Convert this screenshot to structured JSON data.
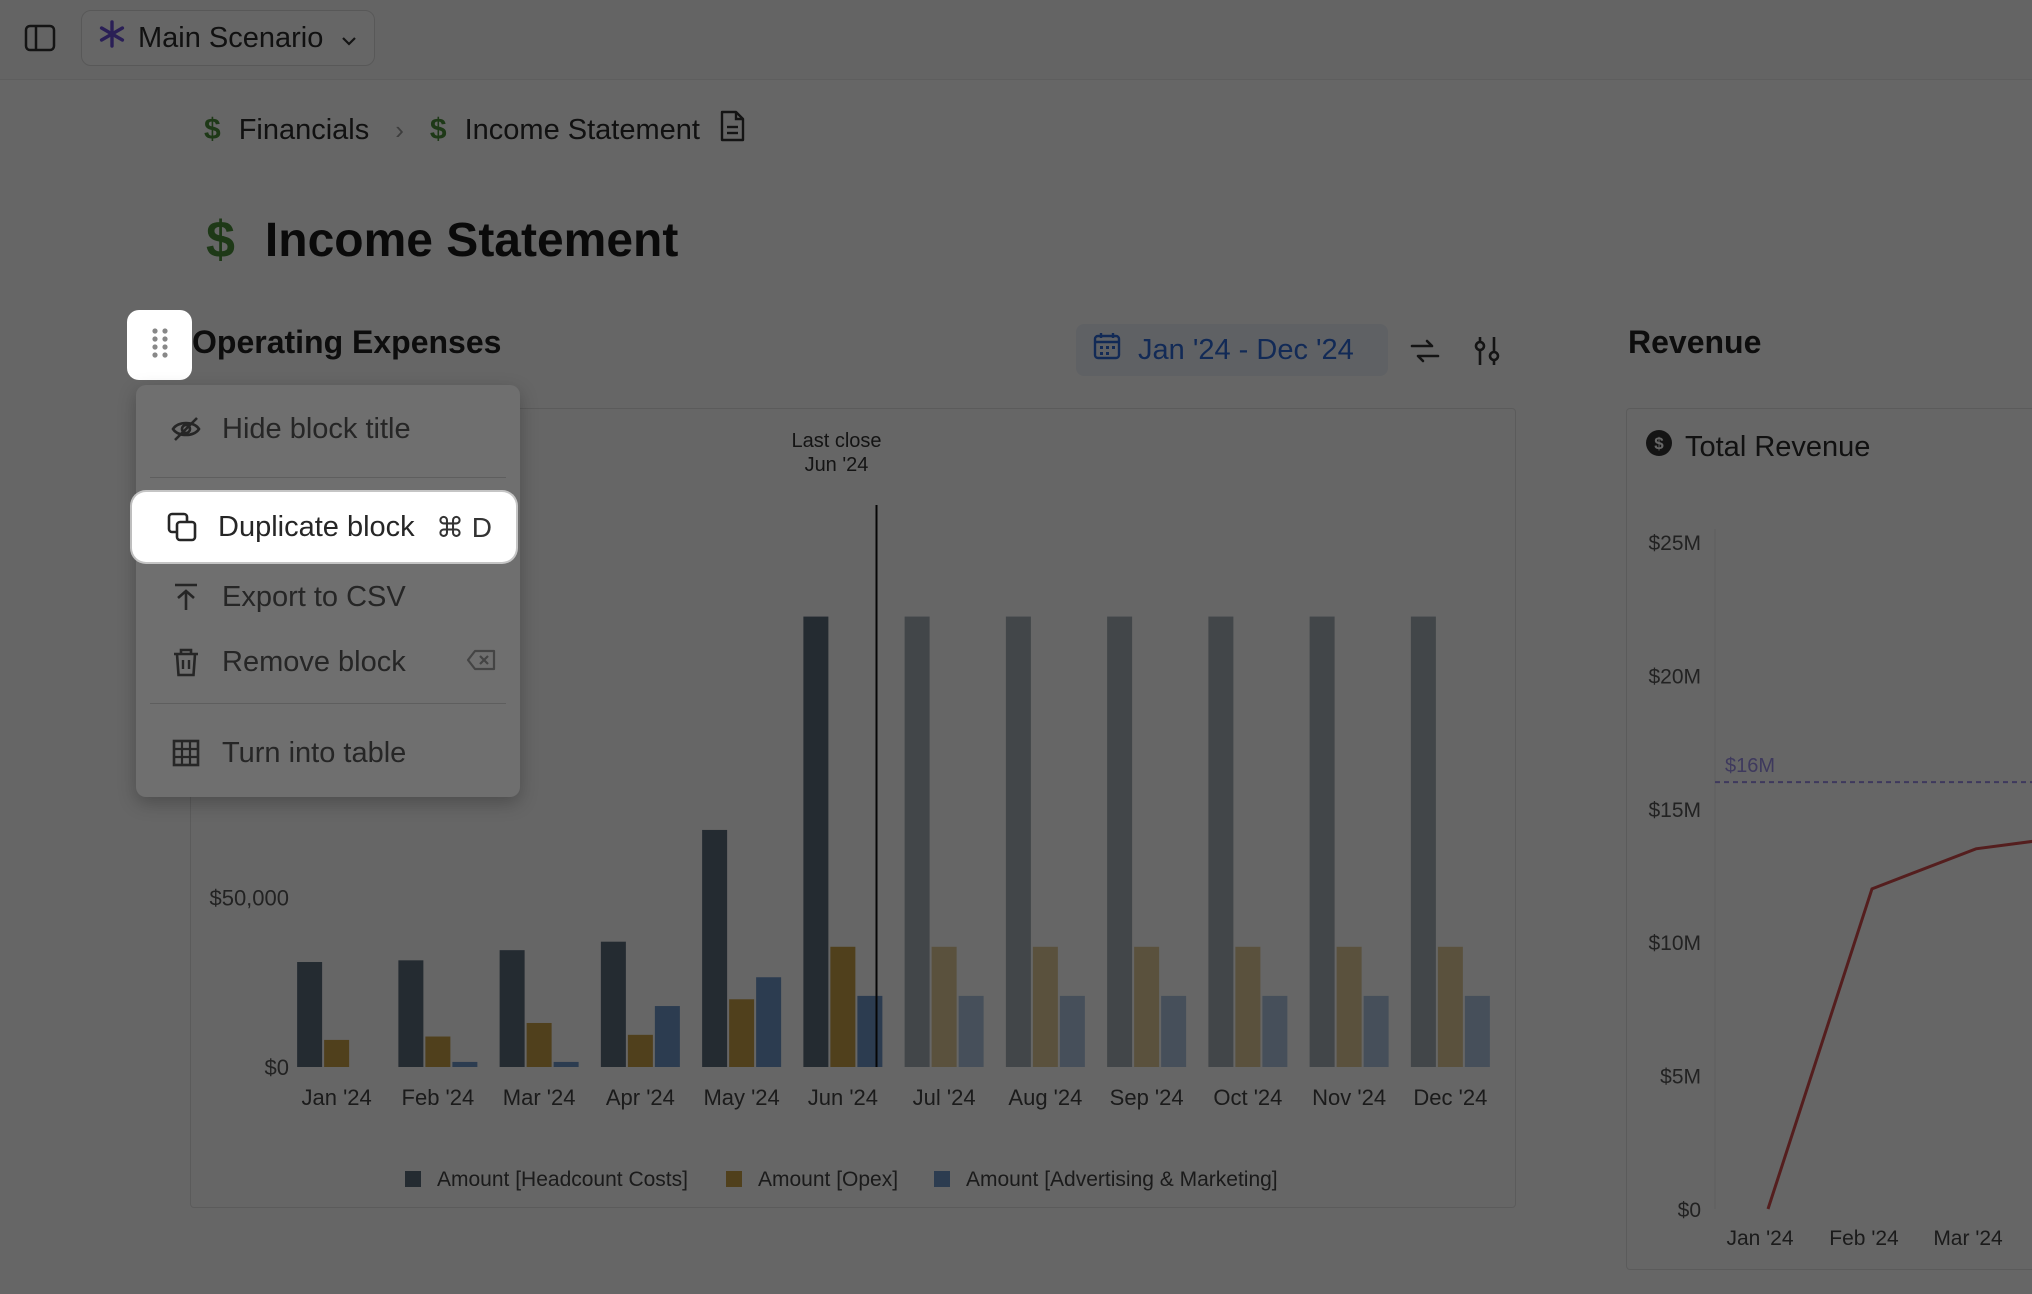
{
  "topbar": {
    "scenario_label": "Main Scenario"
  },
  "breadcrumb": {
    "items": [
      "Financials",
      "Income Statement"
    ]
  },
  "page": {
    "title": "Income Statement"
  },
  "opex_block": {
    "title": "Operating Expenses",
    "date_range": "Jan '24 - Dec '24"
  },
  "chart_data": {
    "type": "bar",
    "categories": [
      "Jan '24",
      "Feb '24",
      "Mar '24",
      "Apr '24",
      "May '24",
      "Jun '24",
      "Jul '24",
      "Aug '24",
      "Sep '24",
      "Oct '24",
      "Nov '24",
      "Dec '24"
    ],
    "series": [
      {
        "name": "Amount [Headcount Costs]",
        "values": [
          31000,
          31500,
          34500,
          37000,
          70000,
          133000,
          133000,
          133000,
          133000,
          133000,
          133000,
          133000
        ]
      },
      {
        "name": "Amount [Opex]",
        "values": [
          8000,
          9000,
          13000,
          9500,
          20000,
          35500,
          35500,
          35500,
          35500,
          35500,
          35500,
          35500
        ]
      },
      {
        "name": "Amount [Advertising & Marketing]",
        "values": [
          0,
          1500,
          1500,
          18000,
          26500,
          21000,
          21000,
          21000,
          21000,
          21000,
          21000,
          21000
        ]
      }
    ],
    "yticks": [
      "$0",
      "$50,000"
    ],
    "ylim": [
      0,
      150000
    ],
    "marker": {
      "label": "Last close",
      "sublabel": "Jun '24",
      "after_index": 5
    },
    "forecast_from_index": 6,
    "legend_position": "bottom",
    "colors": {
      "headcount": "#5b6b7c",
      "opex": "#c9a046",
      "advertising": "#6e97c8"
    }
  },
  "revenue_block": {
    "title": "Revenue",
    "card_title": "Total Revenue",
    "chart_data": {
      "type": "line",
      "x": [
        "Jan '24",
        "Feb '24",
        "Mar '24"
      ],
      "series": [
        {
          "values": [
            0,
            12000000,
            13500000
          ]
        }
      ],
      "yticks": [
        "$0",
        "$5M",
        "$10M",
        "$15M",
        "$20M",
        "$25M"
      ],
      "ylim": [
        0,
        25000000
      ],
      "reference_line": {
        "value": 16000000,
        "label": "$16M"
      },
      "colors": {
        "line": "#d24b4b"
      }
    }
  },
  "context_menu": {
    "items": [
      {
        "label": "Hide block title",
        "icon": "eye-off-icon"
      },
      {
        "label": "Duplicate block",
        "shortcut": "⌘ D",
        "icon": "duplicate-icon"
      },
      {
        "label": "Export to CSV",
        "icon": "export-icon"
      },
      {
        "label": "Remove block",
        "icon": "trash-icon",
        "shortcut_icon": "backspace-icon"
      },
      {
        "label": "Turn into table",
        "icon": "table-icon"
      }
    ]
  }
}
